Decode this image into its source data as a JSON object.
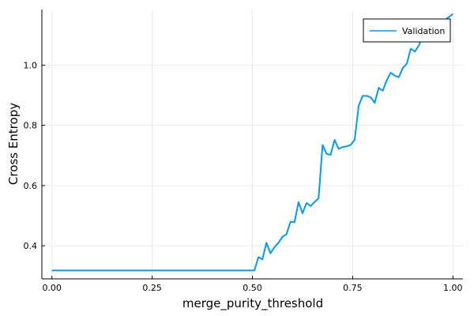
{
  "chart_data": {
    "type": "line",
    "xlabel": "merge_purity_threshold",
    "ylabel": "Cross Entropy",
    "xlim": [
      -0.025,
      1.025
    ],
    "ylim": [
      0.29,
      1.185
    ],
    "xticks": [
      0.0,
      0.25,
      0.5,
      0.75,
      1.0
    ],
    "xtick_labels": [
      "0.00",
      "0.25",
      "0.50",
      "0.75",
      "1.00"
    ],
    "yticks": [
      0.4,
      0.6,
      0.8,
      1.0
    ],
    "ytick_labels": [
      "0.4",
      "0.6",
      "0.8",
      "1.0"
    ],
    "grid": true,
    "legend_position": "top-right",
    "series": [
      {
        "name": "Validation",
        "color": "#009af9",
        "x": [
          0.0,
          0.05,
          0.1,
          0.15,
          0.2,
          0.25,
          0.3,
          0.35,
          0.4,
          0.45,
          0.5,
          0.505,
          0.515,
          0.525,
          0.535,
          0.545,
          0.555,
          0.565,
          0.575,
          0.585,
          0.595,
          0.605,
          0.615,
          0.625,
          0.635,
          0.645,
          0.655,
          0.665,
          0.675,
          0.685,
          0.695,
          0.705,
          0.715,
          0.725,
          0.735,
          0.745,
          0.755,
          0.765,
          0.775,
          0.785,
          0.795,
          0.805,
          0.815,
          0.825,
          0.835,
          0.845,
          0.855,
          0.865,
          0.875,
          0.885,
          0.895,
          0.905,
          0.915,
          0.925,
          0.935,
          0.945,
          0.955,
          0.965,
          0.975,
          0.985,
          0.995,
          1.0
        ],
        "y": [
          0.318,
          0.318,
          0.318,
          0.318,
          0.318,
          0.318,
          0.318,
          0.318,
          0.318,
          0.318,
          0.318,
          0.318,
          0.362,
          0.355,
          0.41,
          0.375,
          0.395,
          0.41,
          0.43,
          0.438,
          0.48,
          0.478,
          0.545,
          0.508,
          0.542,
          0.532,
          0.545,
          0.558,
          0.735,
          0.705,
          0.702,
          0.752,
          0.722,
          0.728,
          0.73,
          0.735,
          0.752,
          0.865,
          0.898,
          0.898,
          0.893,
          0.875,
          0.925,
          0.915,
          0.95,
          0.975,
          0.965,
          0.96,
          0.99,
          1.005,
          1.055,
          1.045,
          1.065,
          1.095,
          1.115,
          1.09,
          1.125,
          1.12,
          1.145,
          1.155,
          1.165,
          1.17
        ]
      }
    ]
  }
}
